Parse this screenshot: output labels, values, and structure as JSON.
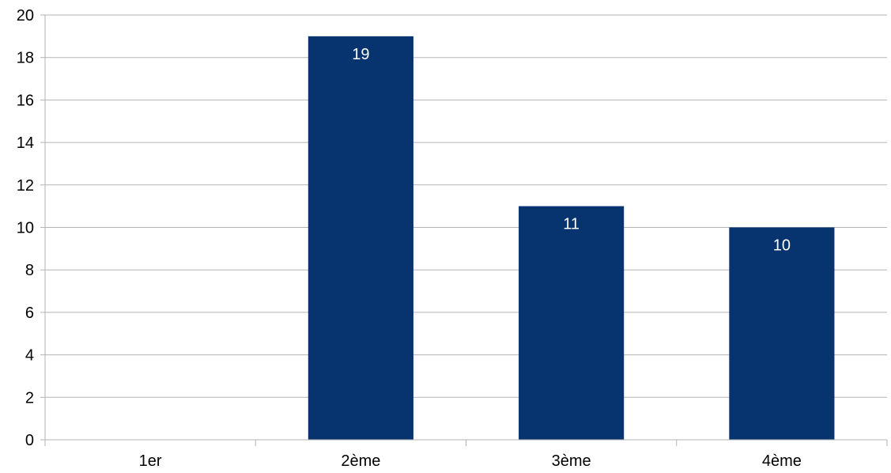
{
  "chart_data": {
    "type": "bar",
    "categories": [
      "1er",
      "2ème",
      "3ème",
      "4ème"
    ],
    "values": [
      0,
      19,
      11,
      10
    ],
    "data_labels": [
      "",
      "19",
      "11",
      "10"
    ],
    "yticks": [
      "0",
      "2",
      "4",
      "6",
      "8",
      "10",
      "12",
      "14",
      "16",
      "18",
      "20"
    ],
    "ylim": [
      0,
      20
    ],
    "grid": true,
    "legend": "none",
    "colors": {
      "bar": "#07336f",
      "grid": "#b3b3b3",
      "label": "#ffffff",
      "text": "#000000"
    }
  }
}
